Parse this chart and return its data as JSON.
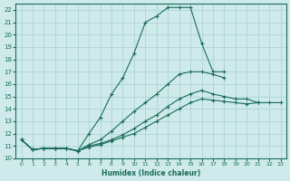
{
  "xlabel": "Humidex (Indice chaleur)",
  "bg_color": "#ceeaea",
  "line_color": "#1a6b5a",
  "grid_color": "#aacfcf",
  "xlim": [
    -0.5,
    23.5
  ],
  "ylim": [
    10,
    22.5
  ],
  "xticks": [
    0,
    1,
    2,
    3,
    4,
    5,
    6,
    7,
    8,
    9,
    10,
    11,
    12,
    13,
    14,
    15,
    16,
    17,
    18,
    19,
    20,
    21,
    22,
    23
  ],
  "yticks": [
    10,
    11,
    12,
    13,
    14,
    15,
    16,
    17,
    18,
    19,
    20,
    21,
    22
  ],
  "lines": [
    {
      "x": [
        0,
        1,
        2,
        3,
        4,
        5,
        6,
        7,
        8,
        9,
        10,
        11,
        12,
        13,
        14,
        15,
        16,
        17,
        18
      ],
      "y": [
        11.5,
        10.7,
        10.8,
        10.8,
        10.8,
        10.6,
        12.0,
        13.3,
        15.2,
        16.5,
        18.5,
        21.0,
        21.5,
        22.2,
        22.2,
        22.2,
        19.3,
        17.0,
        17.0
      ],
      "has_marker": true
    },
    {
      "x": [
        0,
        1,
        2,
        3,
        4,
        5,
        6,
        7,
        8,
        9,
        10,
        11,
        12,
        13,
        14,
        15,
        16,
        17,
        18,
        19,
        20,
        21,
        22,
        23
      ],
      "y": [
        11.5,
        10.7,
        10.8,
        10.8,
        10.8,
        10.6,
        11.1,
        11.5,
        12.2,
        13.0,
        13.8,
        14.5,
        15.2,
        16.0,
        16.8,
        17.0,
        17.0,
        16.8,
        16.5,
        null,
        null,
        null,
        null,
        null
      ],
      "has_marker": true
    },
    {
      "x": [
        0,
        1,
        2,
        3,
        4,
        5,
        6,
        7,
        8,
        9,
        10,
        11,
        12,
        13,
        14,
        15,
        16,
        17,
        18,
        19,
        20,
        21,
        22,
        23
      ],
      "y": [
        11.5,
        10.7,
        10.8,
        10.8,
        10.8,
        10.6,
        11.0,
        11.2,
        11.5,
        11.9,
        12.4,
        13.0,
        13.5,
        14.2,
        14.8,
        15.2,
        15.5,
        15.2,
        15.0,
        14.8,
        14.8,
        14.5,
        null,
        null
      ],
      "has_marker": true
    },
    {
      "x": [
        0,
        1,
        2,
        3,
        4,
        5,
        6,
        7,
        8,
        9,
        10,
        11,
        12,
        13,
        14,
        15,
        16,
        17,
        18,
        19,
        20,
        21,
        22,
        23
      ],
      "y": [
        11.5,
        10.7,
        10.8,
        10.8,
        10.8,
        10.6,
        10.9,
        11.1,
        11.4,
        11.7,
        12.0,
        12.5,
        13.0,
        13.5,
        14.0,
        14.5,
        14.8,
        14.7,
        14.6,
        14.5,
        14.4,
        14.5,
        14.5,
        14.5
      ],
      "has_marker": true
    }
  ]
}
